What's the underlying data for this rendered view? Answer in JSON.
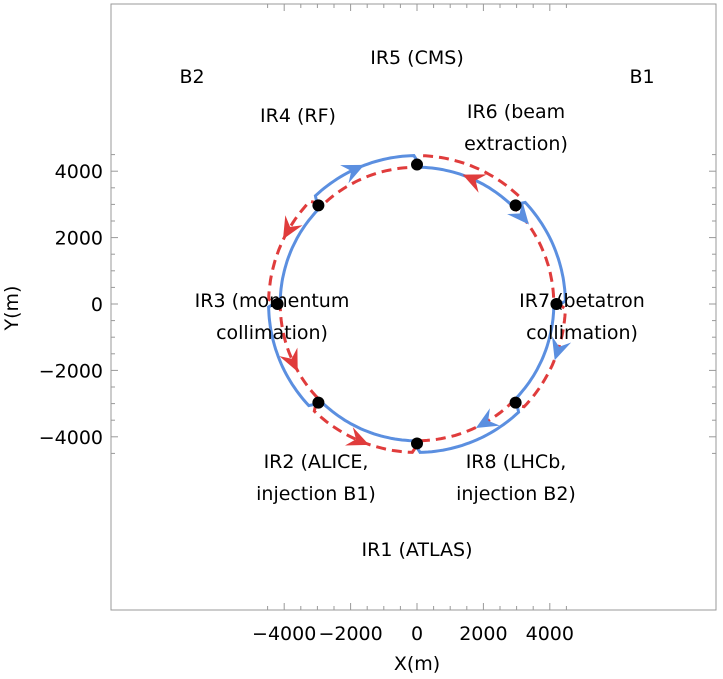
{
  "chart_data": {
    "type": "diagram",
    "xlabel": "X(m)",
    "ylabel": "Y(m)",
    "xlim": [
      -4600,
      4600
    ],
    "ylim": [
      -4600,
      4600
    ],
    "x_ticks": [
      -4000,
      -2000,
      0,
      2000,
      4000
    ],
    "y_ticks": [
      4000,
      2000,
      0,
      -2000,
      -4000
    ],
    "x_tick_labels": [
      "−4000",
      "−2000",
      "0",
      "2000",
      "4000"
    ],
    "y_tick_labels": [
      "4000",
      "2000",
      "0",
      "−2000",
      "−4000"
    ],
    "beams": [
      {
        "label": "B1",
        "color": "#5b8fe0",
        "style": "solid"
      },
      {
        "label": "B2",
        "color": "#e03c3c",
        "style": "dashed"
      }
    ],
    "interaction_regions": [
      {
        "lines": [
          "IR1 (ATLAS)"
        ],
        "x": 0,
        "y": -4200
      },
      {
        "lines": [
          "IR2 (ALICE,",
          "injection B1)"
        ],
        "x": -2970,
        "y": -2970
      },
      {
        "lines": [
          "IR3 (momentum",
          "collimation)"
        ],
        "x": -4200,
        "y": 0
      },
      {
        "lines": [
          "IR4 (RF)"
        ],
        "x": -2970,
        "y": 2970
      },
      {
        "lines": [
          "IR5 (CMS)"
        ],
        "x": 0,
        "y": 4200
      },
      {
        "lines": [
          "IR6 (beam",
          "extraction)"
        ],
        "x": 2970,
        "y": 2970
      },
      {
        "lines": [
          "IR7 (betatron",
          "collimation)"
        ],
        "x": 4200,
        "y": 0
      },
      {
        "lines": [
          "IR8 (LHCb,",
          "injection B2)"
        ],
        "x": 2970,
        "y": -2970
      }
    ]
  }
}
